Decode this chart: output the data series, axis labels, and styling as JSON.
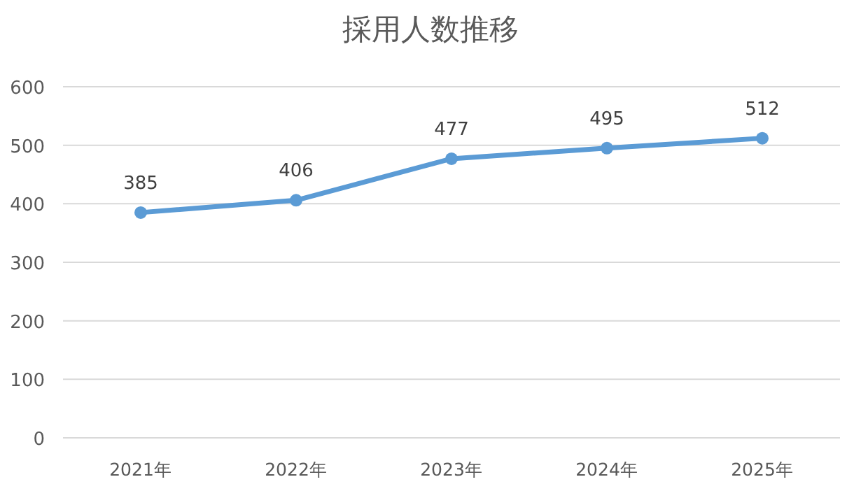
{
  "chart_data": {
    "type": "line",
    "title": "採用人数推移",
    "categories": [
      "2021年",
      "2022年",
      "2023年",
      "2024年",
      "2025年"
    ],
    "series": [
      {
        "color": "#5b9bd5",
        "values": [
          385,
          406,
          477,
          495,
          512
        ]
      }
    ],
    "ylim": [
      0,
      600
    ],
    "yticks": [
      0,
      100,
      200,
      300,
      400,
      500,
      600
    ],
    "grid": "y",
    "marker": "circle",
    "line_style": "solid",
    "data_labels": true
  }
}
